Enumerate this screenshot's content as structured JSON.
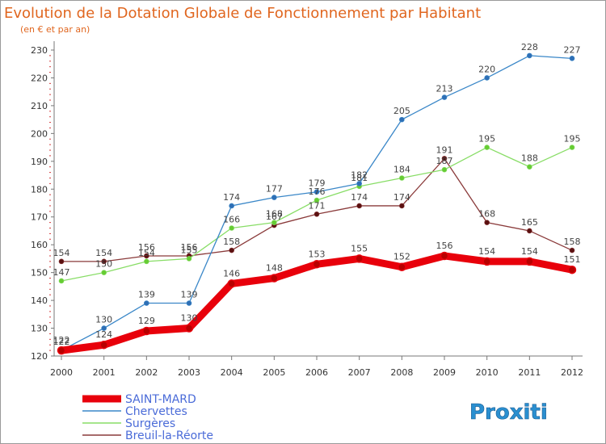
{
  "header": {
    "title": "Evolution de la Dotation Globale de Fonctionnement par Habitant",
    "subtitle": "(en € et par an)"
  },
  "logo": {
    "text": "Proxiti"
  },
  "chart_data": {
    "type": "line",
    "title": "Evolution de la Dotation Globale de Fonctionnement par Habitant",
    "subtitle": "(en € et par an)",
    "xlabel": "",
    "ylabel": "",
    "x": [
      "2000",
      "2001",
      "2002",
      "2003",
      "2004",
      "2005",
      "2006",
      "2007",
      "2008",
      "2009",
      "2010",
      "2011",
      "2012"
    ],
    "ylim": [
      120,
      232
    ],
    "yticks": [
      120,
      130,
      140,
      150,
      160,
      170,
      180,
      190,
      200,
      210,
      220,
      230
    ],
    "grid": false,
    "legend_position": "bottom-left",
    "series": [
      {
        "name": "SAINT-MARD",
        "color": "#e8000b",
        "emphasis": true,
        "values": [
          122,
          124,
          129,
          130,
          146,
          148,
          153,
          155,
          152,
          156,
          154,
          154,
          151
        ]
      },
      {
        "name": "Chervettes",
        "color": "#3a87c8",
        "marker": "#2f6fb5",
        "values": [
          122,
          130,
          139,
          139,
          174,
          177,
          179,
          182,
          205,
          213,
          220,
          228,
          227
        ]
      },
      {
        "name": "Surgères",
        "color": "#88dd66",
        "marker": "#66cc33",
        "values": [
          147,
          150,
          154,
          155,
          166,
          168,
          176,
          181,
          184,
          187,
          195,
          188,
          195
        ]
      },
      {
        "name": "Breuil-la-Réorte",
        "color": "#8a3a3a",
        "marker": "#5a1010",
        "values": [
          154,
          154,
          156,
          156,
          158,
          167,
          171,
          174,
          174,
          191,
          168,
          165,
          158
        ]
      }
    ]
  }
}
